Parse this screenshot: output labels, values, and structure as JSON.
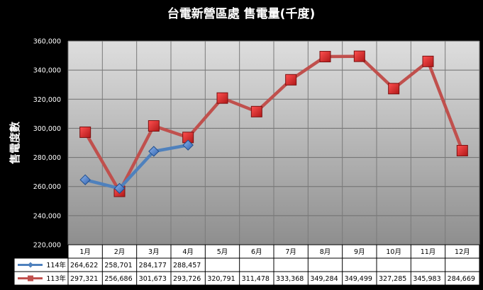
{
  "chart_data": {
    "type": "line",
    "title": "台電新營區處 售電量(千度)",
    "xlabel": "",
    "ylabel": "售電度數",
    "categories": [
      "1月",
      "2月",
      "3月",
      "4月",
      "5月",
      "6月",
      "7月",
      "8月",
      "9月",
      "10月",
      "11月",
      "12月"
    ],
    "ylim": [
      220000,
      360000
    ],
    "yticks": [
      220000,
      240000,
      260000,
      280000,
      300000,
      320000,
      340000,
      360000
    ],
    "ytick_labels": [
      "220,000",
      "240,000",
      "260,000",
      "280,000",
      "300,000",
      "320,000",
      "340,000",
      "360,000"
    ],
    "grid": true,
    "legend": "data-table",
    "series": [
      {
        "name": "114年",
        "color": "#4f81bd",
        "marker": "diamond",
        "values": [
          264622,
          258701,
          284177,
          288457,
          null,
          null,
          null,
          null,
          null,
          null,
          null,
          null
        ],
        "labels": [
          "264,622",
          "258,701",
          "284,177",
          "288,457",
          "",
          "",
          "",
          "",
          "",
          "",
          "",
          ""
        ]
      },
      {
        "name": "113年",
        "color": "#c0504d",
        "marker": "square",
        "values": [
          297321,
          256686,
          301673,
          293726,
          320791,
          311478,
          333368,
          349284,
          349499,
          327285,
          345983,
          284669
        ],
        "labels": [
          "297,321",
          "256,686",
          "301,673",
          "293,726",
          "320,791",
          "311,478",
          "333,368",
          "349,284",
          "349,499",
          "327,285",
          "345,983",
          "284,669"
        ]
      }
    ]
  }
}
